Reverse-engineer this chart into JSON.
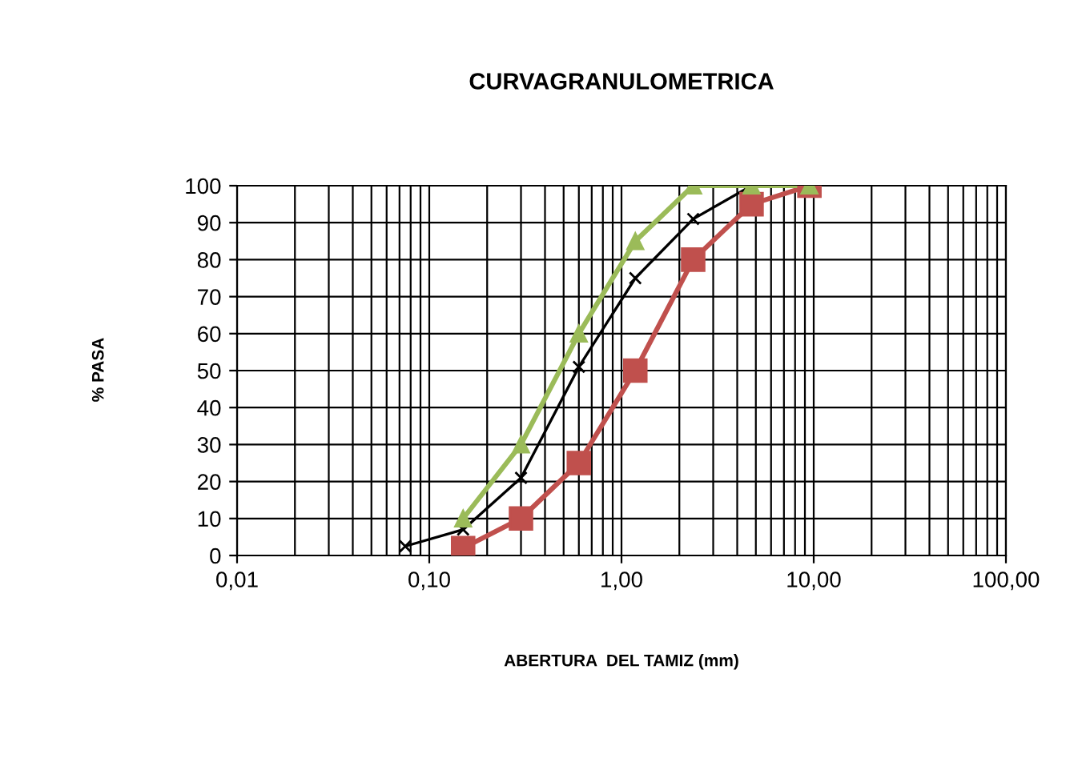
{
  "chart_data": {
    "type": "line",
    "title": "CURVAGRANULOMETRICA",
    "xlabel": "ABERTURA  DEL TAMIZ (mm)",
    "ylabel": "% PASA",
    "log": "x",
    "xlim": [
      0.01,
      100
    ],
    "xticks": [
      {
        "value": 0.01,
        "label": "0,01"
      },
      {
        "value": 0.1,
        "label": "0,10"
      },
      {
        "value": 1,
        "label": "1,00"
      },
      {
        "value": 10,
        "label": "10,00"
      },
      {
        "value": 100,
        "label": "100,00"
      }
    ],
    "ylim": [
      0,
      100
    ],
    "yticks": [
      0,
      10,
      20,
      30,
      40,
      50,
      60,
      70,
      80,
      90,
      100
    ],
    "grid": true,
    "legend": false,
    "series": [
      {
        "color": "#000000",
        "marker": "cross",
        "x": [
          0.075,
          0.15,
          0.3,
          0.6,
          1.18,
          2.36,
          4.75,
          9.5
        ],
        "values": [
          2.5,
          7,
          21,
          51,
          75,
          91,
          100,
          100
        ]
      },
      {
        "color": "#c0504d",
        "marker": "square",
        "x": [
          0.15,
          0.3,
          0.6,
          1.18,
          2.36,
          4.75,
          9.5
        ],
        "values": [
          2,
          10,
          25,
          50,
          80,
          95,
          100
        ]
      },
      {
        "color": "#9bbb59",
        "marker": "triangle",
        "x": [
          0.15,
          0.3,
          0.6,
          1.18,
          2.36,
          4.75,
          9.5
        ],
        "values": [
          10,
          30,
          60,
          85,
          100,
          100,
          100
        ]
      }
    ]
  }
}
